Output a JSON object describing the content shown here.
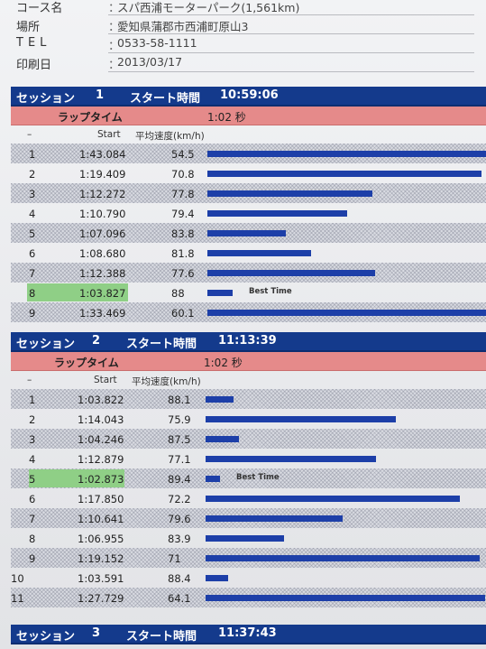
{
  "header": {
    "rows": [
      {
        "label": "コース名",
        "value": "スパ西浦モーターパーク(1,561km)"
      },
      {
        "label": "場所",
        "value": "愛知県蒲郡市西浦町原山3"
      },
      {
        "label": "TEL",
        "value": "0533-58-1111"
      },
      {
        "label": "印刷日",
        "value": "2013/03/17"
      }
    ]
  },
  "labels": {
    "session": "セッション",
    "start_time": "スタート時間",
    "lap_time": "ラップタイム",
    "start": "Start",
    "avg_speed": "平均速度(km/h)",
    "dash": "–",
    "best_time": "Best Time",
    "bar_scale": {
      "min_time_sec": 60.0,
      "max_time_sec": 94.0
    }
  },
  "sessions": [
    {
      "number": "1",
      "start_time": "10:59:06",
      "lap_value": "1:02 秒",
      "laps": [
        {
          "no": "1",
          "time": "1:43.084",
          "speed": "54.5",
          "best": false,
          "bar_fraction": 1.0
        },
        {
          "no": "2",
          "time": "1:19.409",
          "speed": "70.8",
          "best": false,
          "bar_fraction": 0.98
        },
        {
          "no": "3",
          "time": "1:12.272",
          "speed": "77.8",
          "best": false,
          "bar_fraction": 0.59
        },
        {
          "no": "4",
          "time": "1:10.790",
          "speed": "79.4",
          "best": false,
          "bar_fraction": 0.5
        },
        {
          "no": "5",
          "time": "1:07.096",
          "speed": "83.8",
          "best": false,
          "bar_fraction": 0.28
        },
        {
          "no": "6",
          "time": "1:08.680",
          "speed": "81.8",
          "best": false,
          "bar_fraction": 0.37
        },
        {
          "no": "7",
          "time": "1:12.388",
          "speed": "77.6",
          "best": false,
          "bar_fraction": 0.6
        },
        {
          "no": "8",
          "time": "1:03.827",
          "speed": "88",
          "best": true,
          "bar_fraction": 0.09
        },
        {
          "no": "9",
          "time": "1:33.469",
          "speed": "60.1",
          "best": false,
          "bar_fraction": 1.0
        }
      ]
    },
    {
      "number": "2",
      "start_time": "11:13:39",
      "lap_value": "1:02 秒",
      "laps": [
        {
          "no": "1",
          "time": "1:03.822",
          "speed": "88.1",
          "best": false,
          "bar_fraction": 0.1
        },
        {
          "no": "2",
          "time": "1:14.043",
          "speed": "75.9",
          "best": false,
          "bar_fraction": 0.68
        },
        {
          "no": "3",
          "time": "1:04.246",
          "speed": "87.5",
          "best": false,
          "bar_fraction": 0.12
        },
        {
          "no": "4",
          "time": "1:12.879",
          "speed": "77.1",
          "best": false,
          "bar_fraction": 0.61
        },
        {
          "no": "5",
          "time": "1:02.873",
          "speed": "89.4",
          "best": true,
          "bar_fraction": 0.05
        },
        {
          "no": "6",
          "time": "1:17.850",
          "speed": "72.2",
          "best": false,
          "bar_fraction": 0.91
        },
        {
          "no": "7",
          "time": "1:10.641",
          "speed": "79.6",
          "best": false,
          "bar_fraction": 0.49
        },
        {
          "no": "8",
          "time": "1:06.955",
          "speed": "83.9",
          "best": false,
          "bar_fraction": 0.28
        },
        {
          "no": "9",
          "time": "1:19.152",
          "speed": "71",
          "best": false,
          "bar_fraction": 0.98
        },
        {
          "no": "10",
          "time": "1:03.591",
          "speed": "88.4",
          "best": false,
          "bar_fraction": 0.08
        },
        {
          "no": "11",
          "time": "1:27.729",
          "speed": "64.1",
          "best": false,
          "bar_fraction": 1.0
        }
      ]
    },
    {
      "number": "3",
      "start_time": "11:37:43",
      "lap_value": "",
      "laps": []
    }
  ]
}
